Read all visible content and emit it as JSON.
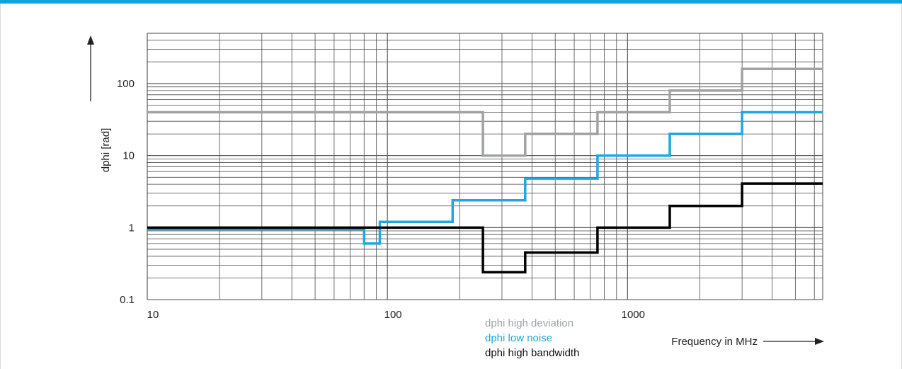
{
  "chart_data": {
    "type": "line",
    "step": true,
    "xscale": "log",
    "yscale": "log",
    "xlim": [
      10,
      6500
    ],
    "ylim": [
      0.1,
      500
    ],
    "xlabel": "Frequency in MHz",
    "ylabel": "dphi [rad]",
    "x_ticks": [
      10,
      100,
      1000
    ],
    "x_tick_labels": [
      "10",
      "100",
      "1000"
    ],
    "y_ticks": [
      0.1,
      1,
      10,
      100
    ],
    "y_tick_labels": [
      "0.1",
      "1",
      "10",
      "100"
    ],
    "grid": true,
    "legend_position": "bottom-center",
    "series": [
      {
        "name": "dphi high deviation",
        "color": "#a0a3a6",
        "steps": [
          {
            "x_from": 10,
            "x_to": 250,
            "y": 40
          },
          {
            "x_from": 250,
            "x_to": 375,
            "y": 10
          },
          {
            "x_from": 375,
            "x_to": 750,
            "y": 20
          },
          {
            "x_from": 750,
            "x_to": 1500,
            "y": 40
          },
          {
            "x_from": 1500,
            "x_to": 3000,
            "y": 80
          },
          {
            "x_from": 3000,
            "x_to": 6500,
            "y": 160
          }
        ]
      },
      {
        "name": "dphi low noise",
        "color": "#1ea7e0",
        "steps": [
          {
            "x_from": 10,
            "x_to": 80,
            "y": 0.95
          },
          {
            "x_from": 80,
            "x_to": 93,
            "y": 0.6
          },
          {
            "x_from": 93,
            "x_to": 187,
            "y": 1.2
          },
          {
            "x_from": 187,
            "x_to": 375,
            "y": 2.4
          },
          {
            "x_from": 375,
            "x_to": 750,
            "y": 4.8
          },
          {
            "x_from": 750,
            "x_to": 1500,
            "y": 10
          },
          {
            "x_from": 1500,
            "x_to": 3000,
            "y": 20
          },
          {
            "x_from": 3000,
            "x_to": 6500,
            "y": 40
          }
        ]
      },
      {
        "name": "dphi high bandwidth",
        "color": "#000000",
        "steps": [
          {
            "x_from": 10,
            "x_to": 250,
            "y": 1
          },
          {
            "x_from": 250,
            "x_to": 375,
            "y": 0.24
          },
          {
            "x_from": 375,
            "x_to": 750,
            "y": 0.45
          },
          {
            "x_from": 750,
            "x_to": 1500,
            "y": 1
          },
          {
            "x_from": 1500,
            "x_to": 3000,
            "y": 2
          },
          {
            "x_from": 3000,
            "x_to": 6500,
            "y": 4.1
          }
        ]
      }
    ]
  },
  "colors": {
    "accent_rule": "#12a3dc",
    "grid": "#4a4a4a",
    "axis_text": "#222222"
  }
}
